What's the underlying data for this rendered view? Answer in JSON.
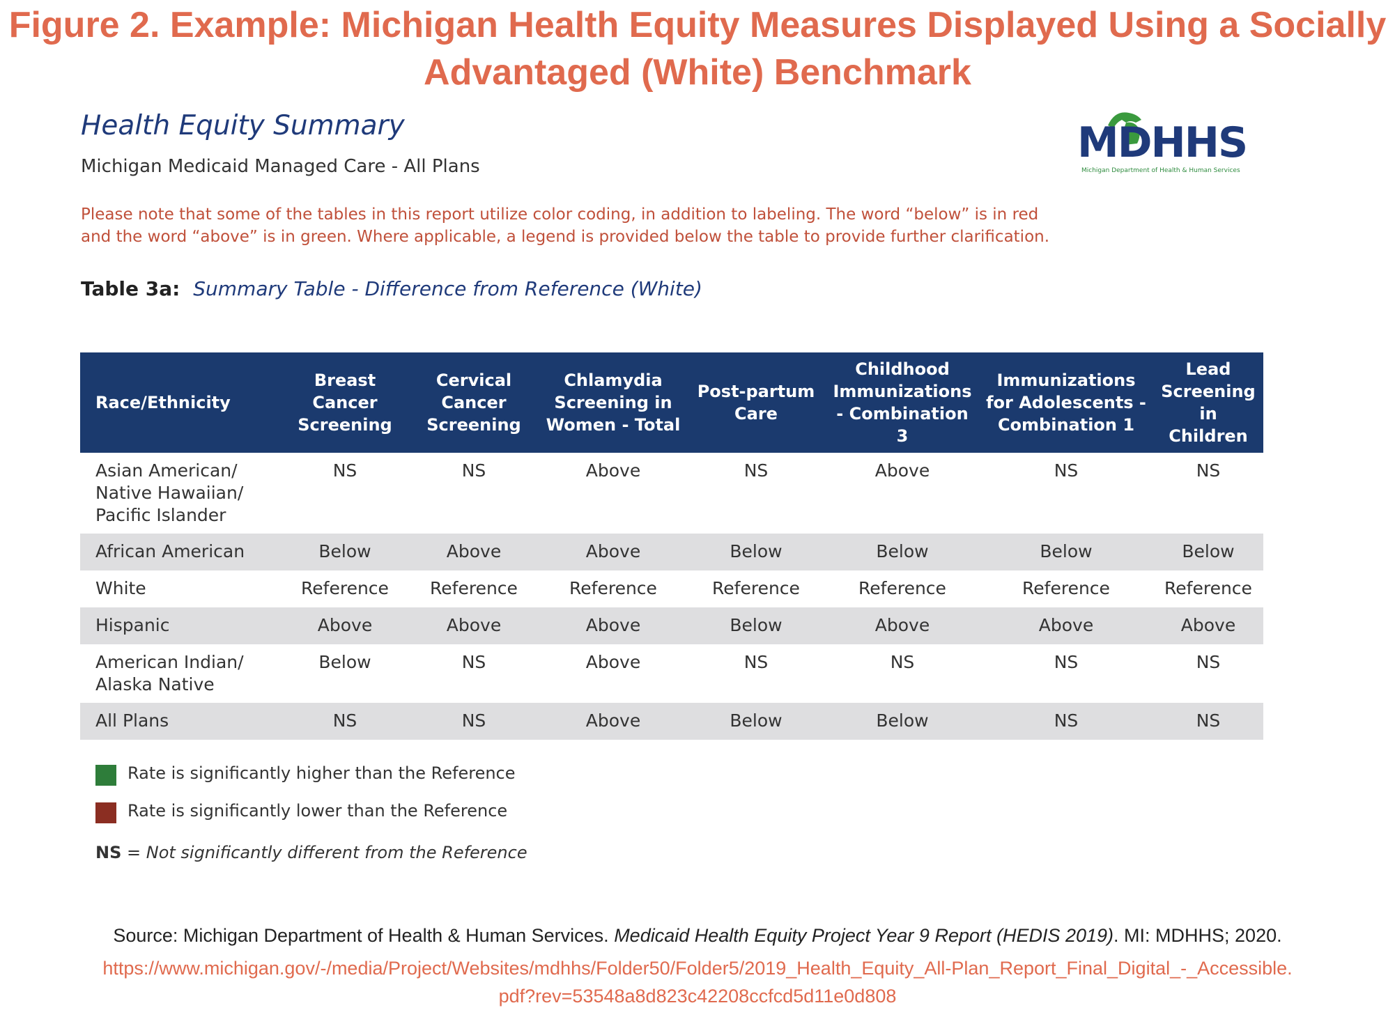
{
  "figure_title": {
    "line1": "Figure 2. Example: Michigan Health Equity Measures Displayed Using a Socially",
    "line2": "Advantaged (White) Benchmark"
  },
  "document": {
    "title": "Health Equity Summary",
    "subtitle": "Michigan Medicaid Managed Care - All Plans",
    "logo_text": "MDHHS",
    "logo_subtext": "Michigan Department of Health & Human Services"
  },
  "note": {
    "line1": "Please note that some of the tables in this report utilize color coding, in addition to labeling. The word “below” is in red",
    "line2": "and the word “above” is in green. Where applicable, a legend is provided below the table to provide further clarification."
  },
  "table_caption": {
    "label": "Table 3a:",
    "text": "Summary Table - Difference from Reference (White)"
  },
  "table": {
    "headers": [
      "Race/Ethnicity",
      "Breast Cancer Screening",
      "Cervical Cancer Screening",
      "Chlamydia Screening in Women - Total",
      "Post-partum Care",
      "Childhood Immunizations - Combination 3",
      "Immunizations for Adolescents - Combination 1",
      "Lead Screening in Children"
    ],
    "rows": [
      {
        "label": "Asian American/ Native Hawaiian/ Pacific Islander",
        "values": [
          "NS",
          "NS",
          "Above",
          "NS",
          "Above",
          "NS",
          "NS"
        ]
      },
      {
        "label": "African American",
        "values": [
          "Below",
          "Above",
          "Above",
          "Below",
          "Below",
          "Below",
          "Below"
        ]
      },
      {
        "label": "White",
        "values": [
          "Reference",
          "Reference",
          "Reference",
          "Reference",
          "Reference",
          "Reference",
          "Reference"
        ]
      },
      {
        "label": "Hispanic",
        "values": [
          "Above",
          "Above",
          "Above",
          "Below",
          "Above",
          "Above",
          "Above"
        ]
      },
      {
        "label": "American Indian/ Alaska Native",
        "values": [
          "Below",
          "NS",
          "Above",
          "NS",
          "NS",
          "NS",
          "NS"
        ]
      },
      {
        "label": "All Plans",
        "values": [
          "NS",
          "NS",
          "Above",
          "Below",
          "Below",
          "NS",
          "NS"
        ]
      }
    ]
  },
  "legend": {
    "higher": {
      "text": "Rate is significantly higher than the Reference",
      "color": "#2e7d3a"
    },
    "lower": {
      "text": "Rate is significantly lower than the Reference",
      "color": "#8b2e22"
    },
    "ns_key": "NS",
    "ns_text": "= Not significantly different from the Reference"
  },
  "source": {
    "prefix": "Source: Michigan Department of Health & Human Services. ",
    "title": "Medicaid Health Equity Project Year 9 Report (HEDIS 2019)",
    "suffix": ". MI: MDHHS; 2020.",
    "url_line1": "https://www.michigan.gov/-/media/Project/Websites/mdhhs/Folder50/Folder5/2019_Health_Equity_All-Plan_Report_Final_Digital_-_Accessible.",
    "url_line2": "pdf?rev=53548a8d823c42208ccfcd5d11e0d808"
  }
}
